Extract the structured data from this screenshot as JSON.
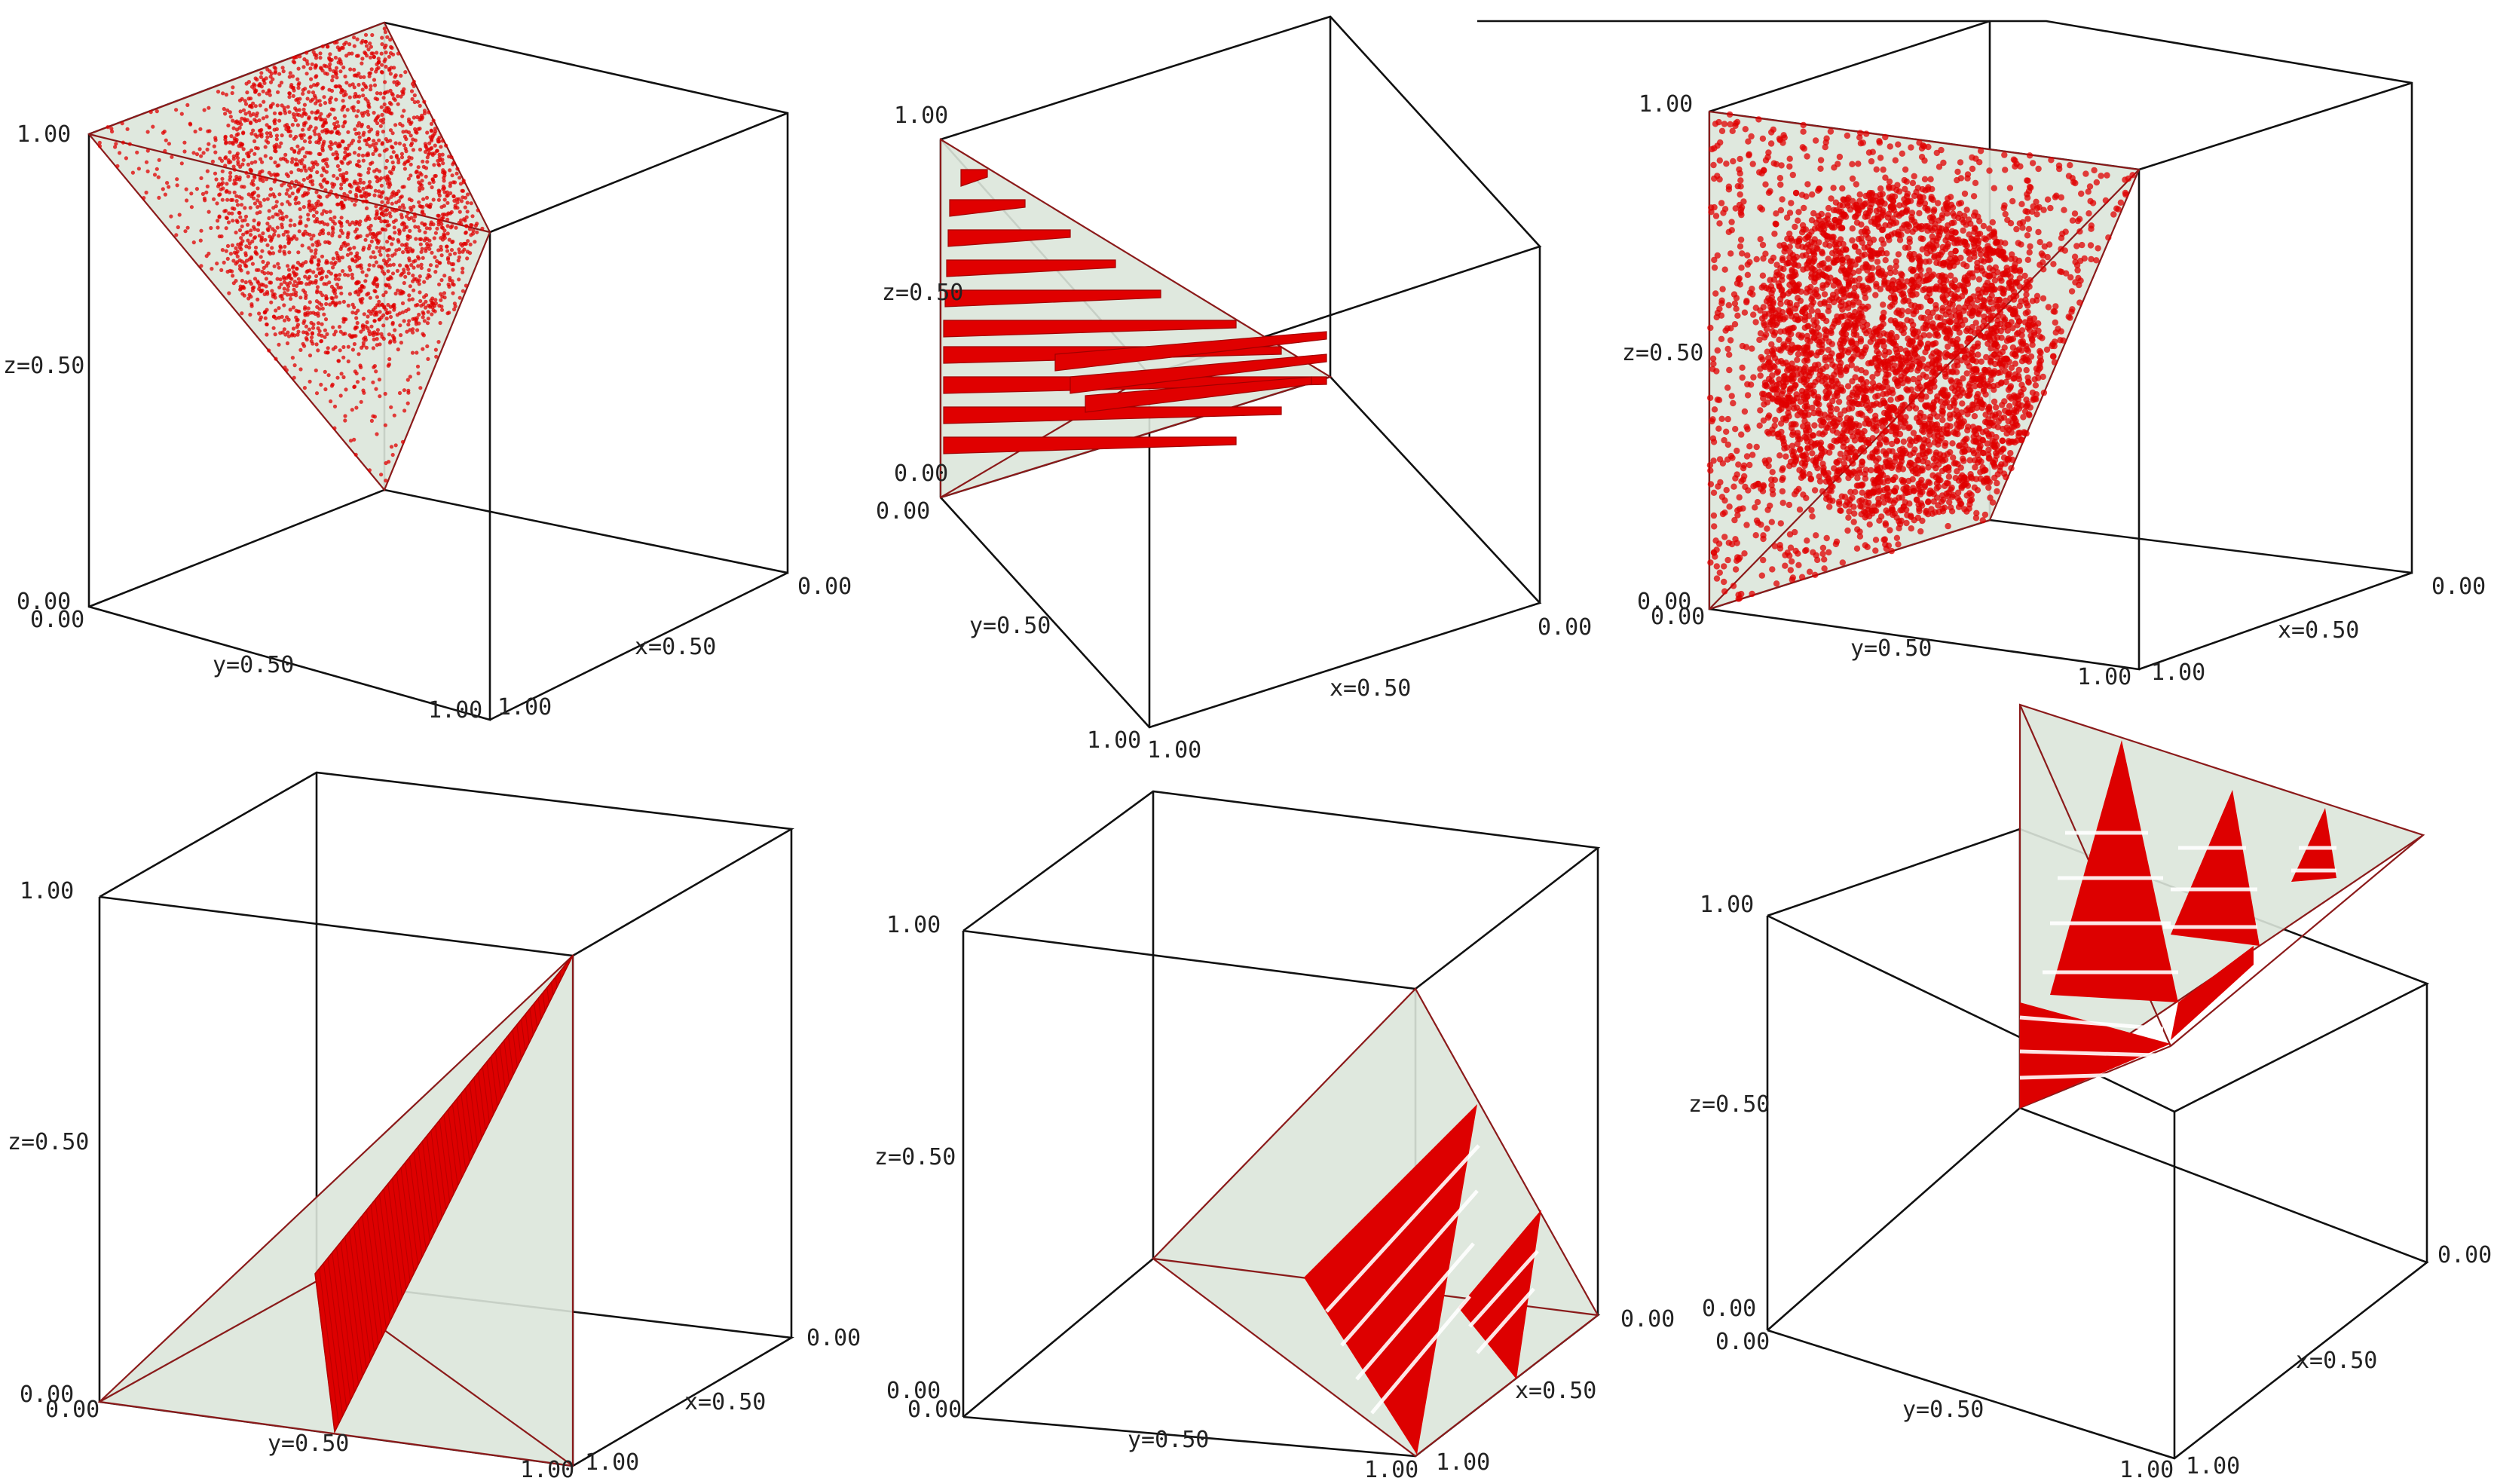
{
  "figure": {
    "colors": {
      "background": "#ffffff",
      "cube_edge": "#111111",
      "tetra_fill": "#dbe6da",
      "tetra_edge": "#8b1a1a",
      "points": "#e00000"
    },
    "panels": [
      {
        "id": "top-left",
        "point_style": "scatter-dense-small",
        "labels": {
          "z_top": "1.00",
          "z_mid": "z=0.50",
          "z_bot": "0.00",
          "y_start": "0.00",
          "y_mid": "y=0.50",
          "y_end": "1.00",
          "x_start": "1.00",
          "x_mid": "x=0.50",
          "x_end": "0.00"
        }
      },
      {
        "id": "top-middle",
        "point_style": "stripes",
        "labels": {
          "z_top": "1.00",
          "z_mid": "z=0.50",
          "z_bot": "0.00",
          "y_start": "0.00",
          "y_mid": "y=0.50",
          "y_end": "1.00",
          "x_start": "1.00",
          "x_mid": "x=0.50",
          "x_end": "0.00"
        }
      },
      {
        "id": "top-right",
        "point_style": "scatter-dense-large",
        "labels": {
          "z_top": "1.00",
          "z_mid": "z=0.50",
          "z_bot": "0.00",
          "y_start": "0.00",
          "y_mid": "y=0.50",
          "y_end": "1.00",
          "x_start": "1.00",
          "x_mid": "x=0.50",
          "x_end": "0.00"
        }
      },
      {
        "id": "bottom-left",
        "point_style": "solid-wedge",
        "labels": {
          "z_top": "1.00",
          "z_mid": "z=0.50",
          "z_bot": "0.00",
          "y_start": "0.00",
          "y_mid": "y=0.50",
          "y_end": "1.00",
          "x_start": "1.00",
          "x_mid": "x=0.50",
          "x_end": "0.00"
        }
      },
      {
        "id": "bottom-middle",
        "point_style": "striped-wedges",
        "labels": {
          "z_top": "1.00",
          "z_mid": "z=0.50",
          "z_bot": "0.00",
          "y_start": "0.00",
          "y_mid": "y=0.50",
          "y_end": "1.00",
          "x_start": "1.00",
          "x_mid": "x=0.50",
          "x_end": "0.00"
        }
      },
      {
        "id": "bottom-right",
        "point_style": "striped-triangles",
        "labels": {
          "z_top": "1.00",
          "z_mid": "z=0.50",
          "z_bot": "0.00",
          "y_start": "0.00",
          "y_mid": "y=0.50",
          "y_end": "1.00",
          "x_start": "1.00",
          "x_mid": "x=0.50",
          "x_end": "0.00"
        }
      }
    ]
  }
}
